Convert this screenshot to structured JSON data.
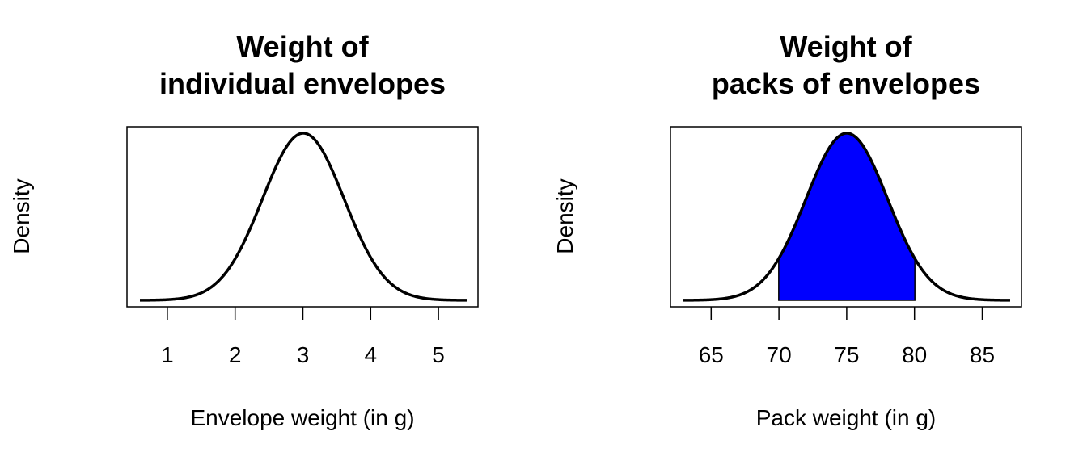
{
  "chart_data": [
    {
      "type": "line",
      "title_lines": [
        "Weight of",
        "individual envelopes"
      ],
      "xlabel": "Envelope weight (in g)",
      "ylabel": "Density",
      "distribution": "normal",
      "mean": 3,
      "sd": 0.6,
      "xlim": [
        0.6,
        5.4
      ],
      "xticks": [
        "1",
        "2",
        "3",
        "4",
        "5"
      ],
      "curve_color": "#000000",
      "shaded": null,
      "grid": false,
      "y_ticks_shown": false
    },
    {
      "type": "area",
      "title_lines": [
        "Weight of",
        "packs of envelopes"
      ],
      "xlabel": "Pack weight (in g)",
      "ylabel": "Density",
      "distribution": "normal",
      "mean": 75,
      "sd": 3,
      "xlim": [
        63,
        87
      ],
      "xticks": [
        "65",
        "70",
        "75",
        "80",
        "85"
      ],
      "curve_color": "#000000",
      "shaded": {
        "from": 70,
        "to": 80,
        "color": "#0000ff"
      },
      "grid": false,
      "y_ticks_shown": false
    }
  ]
}
